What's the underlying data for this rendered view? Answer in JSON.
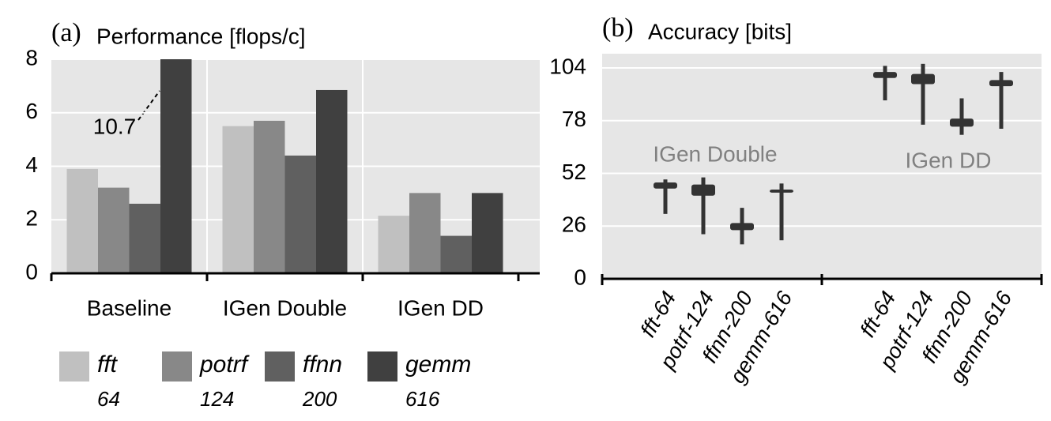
{
  "chart_data": [
    {
      "type": "bar",
      "label": "(a)",
      "title": "Performance [flops/c]",
      "categories": [
        "Baseline",
        "IGen Double",
        "IGen DD"
      ],
      "series": [
        {
          "name": "fft",
          "subtitle": "64",
          "color": "#c0c0c0",
          "values": [
            3.9,
            5.5,
            2.15
          ]
        },
        {
          "name": "potrf",
          "subtitle": "124",
          "color": "#888888",
          "values": [
            3.2,
            5.7,
            3.0
          ]
        },
        {
          "name": "ffnn",
          "subtitle": "200",
          "color": "#606060",
          "values": [
            2.6,
            4.4,
            1.4
          ]
        },
        {
          "name": "gemm",
          "subtitle": "616",
          "color": "#404040",
          "values": [
            10.7,
            6.85,
            3.0
          ],
          "value_labels": [
            "10.7",
            null,
            null
          ]
        }
      ],
      "ylim": [
        0,
        8
      ],
      "yticks": [
        0,
        2,
        4,
        6,
        8
      ],
      "grid": true
    },
    {
      "type": "box",
      "label": "(b)",
      "title": "Accuracy [bits]",
      "color": "#333333",
      "groups": [
        {
          "name": "IGen Double",
          "items": [
            {
              "label": "fft-64",
              "min": 32,
              "q1": 44.5,
              "q3": 47.5,
              "max": 49
            },
            {
              "label": "potrf-124",
              "min": 22,
              "q1": 41,
              "q3": 46.5,
              "max": 50
            },
            {
              "label": "ffnn-200",
              "min": 17,
              "q1": 24,
              "q3": 27.5,
              "max": 35
            },
            {
              "label": "gemm-616",
              "min": 19,
              "q1": 42.5,
              "q3": 44,
              "max": 47
            }
          ]
        },
        {
          "name": "IGen DD",
          "items": [
            {
              "label": "fft-64",
              "min": 88,
              "q1": 99,
              "q3": 102,
              "max": 105
            },
            {
              "label": "potrf-124",
              "min": 76,
              "q1": 96,
              "q3": 101,
              "max": 106
            },
            {
              "label": "ffnn-200",
              "min": 71,
              "q1": 75,
              "q3": 79,
              "max": 89
            },
            {
              "label": "gemm-616",
              "min": 74,
              "q1": 95,
              "q3": 98,
              "max": 102
            }
          ]
        }
      ],
      "ylim": [
        0,
        111
      ],
      "yticks": [
        0,
        26,
        52,
        78,
        104
      ],
      "grid": true
    }
  ]
}
